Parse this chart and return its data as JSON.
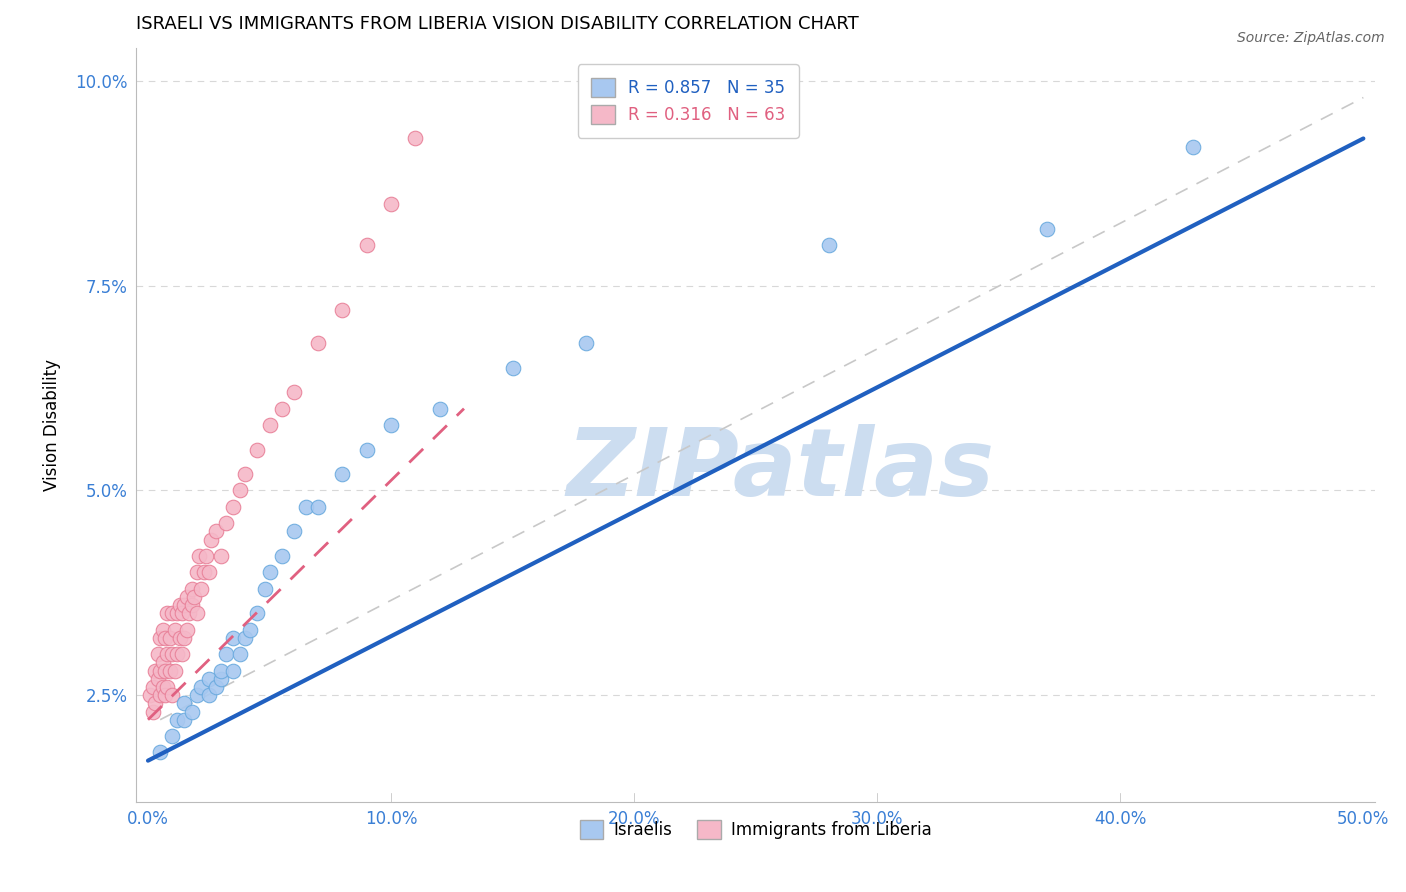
{
  "title": "ISRAELI VS IMMIGRANTS FROM LIBERIA VISION DISABILITY CORRELATION CHART",
  "source": "Source: ZipAtlas.com",
  "xlabel": "",
  "ylabel": "Vision Disability",
  "xlim": [
    -0.005,
    0.505
  ],
  "ylim": [
    0.012,
    0.104
  ],
  "xticks": [
    0.0,
    0.1,
    0.2,
    0.3,
    0.4,
    0.5
  ],
  "yticks": [
    0.025,
    0.05,
    0.075,
    0.1
  ],
  "ytick_labels": [
    "2.5%",
    "5.0%",
    "7.5%",
    "10.0%"
  ],
  "xtick_labels": [
    "0.0%",
    "10.0%",
    "20.0%",
    "30.0%",
    "40.0%",
    "50.0%"
  ],
  "group1_name": "Israelis",
  "group1_color": "#a8c8f0",
  "group1_edge_color": "#6aaade",
  "group1_R": 0.857,
  "group1_N": 35,
  "group2_name": "Immigrants from Liberia",
  "group2_color": "#f5b8c8",
  "group2_edge_color": "#e88098",
  "group2_R": 0.316,
  "group2_N": 63,
  "watermark": "ZIPatlas",
  "watermark_color": "#ccddf0",
  "background_color": "#ffffff",
  "grid_color": "#d8d8d8",
  "blue_line_color": "#2060c0",
  "pink_line_color": "#e06080",
  "diagonal_line_color": "#c8c8c8",
  "israelis_x": [
    0.005,
    0.01,
    0.012,
    0.015,
    0.015,
    0.018,
    0.02,
    0.022,
    0.025,
    0.025,
    0.028,
    0.03,
    0.03,
    0.032,
    0.035,
    0.035,
    0.038,
    0.04,
    0.042,
    0.045,
    0.048,
    0.05,
    0.055,
    0.06,
    0.065,
    0.07,
    0.08,
    0.09,
    0.1,
    0.12,
    0.15,
    0.18,
    0.28,
    0.37,
    0.43
  ],
  "israelis_y": [
    0.018,
    0.02,
    0.022,
    0.022,
    0.024,
    0.023,
    0.025,
    0.026,
    0.025,
    0.027,
    0.026,
    0.027,
    0.028,
    0.03,
    0.028,
    0.032,
    0.03,
    0.032,
    0.033,
    0.035,
    0.038,
    0.04,
    0.042,
    0.045,
    0.048,
    0.048,
    0.052,
    0.055,
    0.058,
    0.06,
    0.065,
    0.068,
    0.08,
    0.082,
    0.092
  ],
  "liberia_x": [
    0.001,
    0.002,
    0.002,
    0.003,
    0.003,
    0.004,
    0.004,
    0.005,
    0.005,
    0.005,
    0.006,
    0.006,
    0.006,
    0.007,
    0.007,
    0.007,
    0.008,
    0.008,
    0.008,
    0.009,
    0.009,
    0.01,
    0.01,
    0.01,
    0.011,
    0.011,
    0.012,
    0.012,
    0.013,
    0.013,
    0.014,
    0.014,
    0.015,
    0.015,
    0.016,
    0.016,
    0.017,
    0.018,
    0.018,
    0.019,
    0.02,
    0.02,
    0.021,
    0.022,
    0.023,
    0.024,
    0.025,
    0.026,
    0.028,
    0.03,
    0.032,
    0.035,
    0.038,
    0.04,
    0.045,
    0.05,
    0.055,
    0.06,
    0.07,
    0.08,
    0.09,
    0.1,
    0.11
  ],
  "liberia_y": [
    0.025,
    0.023,
    0.026,
    0.024,
    0.028,
    0.027,
    0.03,
    0.025,
    0.028,
    0.032,
    0.026,
    0.029,
    0.033,
    0.025,
    0.028,
    0.032,
    0.026,
    0.03,
    0.035,
    0.028,
    0.032,
    0.025,
    0.03,
    0.035,
    0.028,
    0.033,
    0.03,
    0.035,
    0.032,
    0.036,
    0.03,
    0.035,
    0.032,
    0.036,
    0.033,
    0.037,
    0.035,
    0.036,
    0.038,
    0.037,
    0.035,
    0.04,
    0.042,
    0.038,
    0.04,
    0.042,
    0.04,
    0.044,
    0.045,
    0.042,
    0.046,
    0.048,
    0.05,
    0.052,
    0.055,
    0.058,
    0.06,
    0.062,
    0.068,
    0.072,
    0.08,
    0.085,
    0.093
  ],
  "blue_line_x": [
    0.0,
    0.5
  ],
  "blue_line_y": [
    0.017,
    0.093
  ],
  "pink_line_x": [
    0.0,
    0.13
  ],
  "pink_line_y": [
    0.022,
    0.06
  ],
  "diagonal_line_x": [
    0.005,
    0.5
  ],
  "diagonal_line_y": [
    0.022,
    0.098
  ]
}
